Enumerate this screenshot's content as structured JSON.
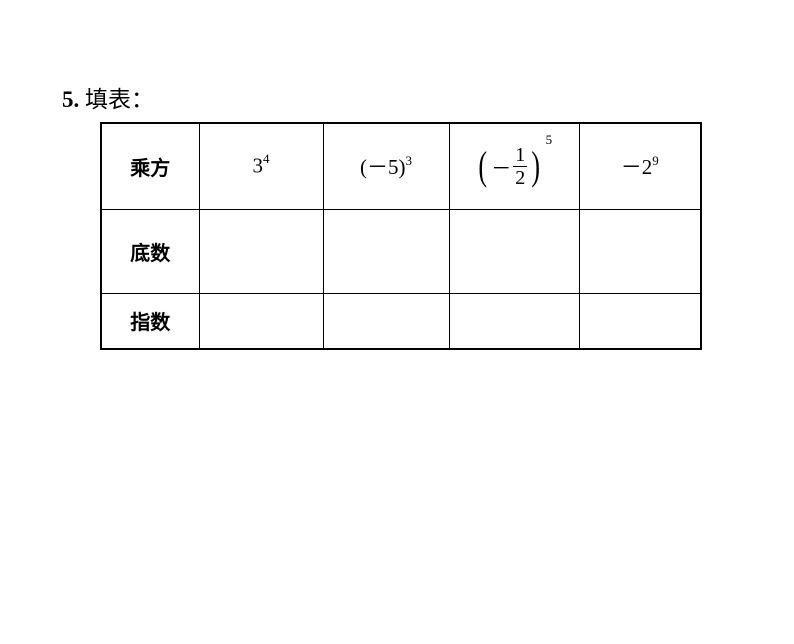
{
  "heading": {
    "number": "5.",
    "text": "填表："
  },
  "table": {
    "rows": [
      {
        "label": "乘方"
      },
      {
        "label": "底数"
      },
      {
        "label": "指数"
      }
    ],
    "expr1": {
      "base": "3",
      "sup": "4"
    },
    "expr2": {
      "open": "(",
      "minus": "－",
      "val": "5",
      "close": ")",
      "sup": "3"
    },
    "expr3": {
      "minus": "－",
      "num": "1",
      "den": "2",
      "sup": "5"
    },
    "expr4": {
      "minus": "－",
      "base": "2",
      "sup": "9"
    }
  }
}
